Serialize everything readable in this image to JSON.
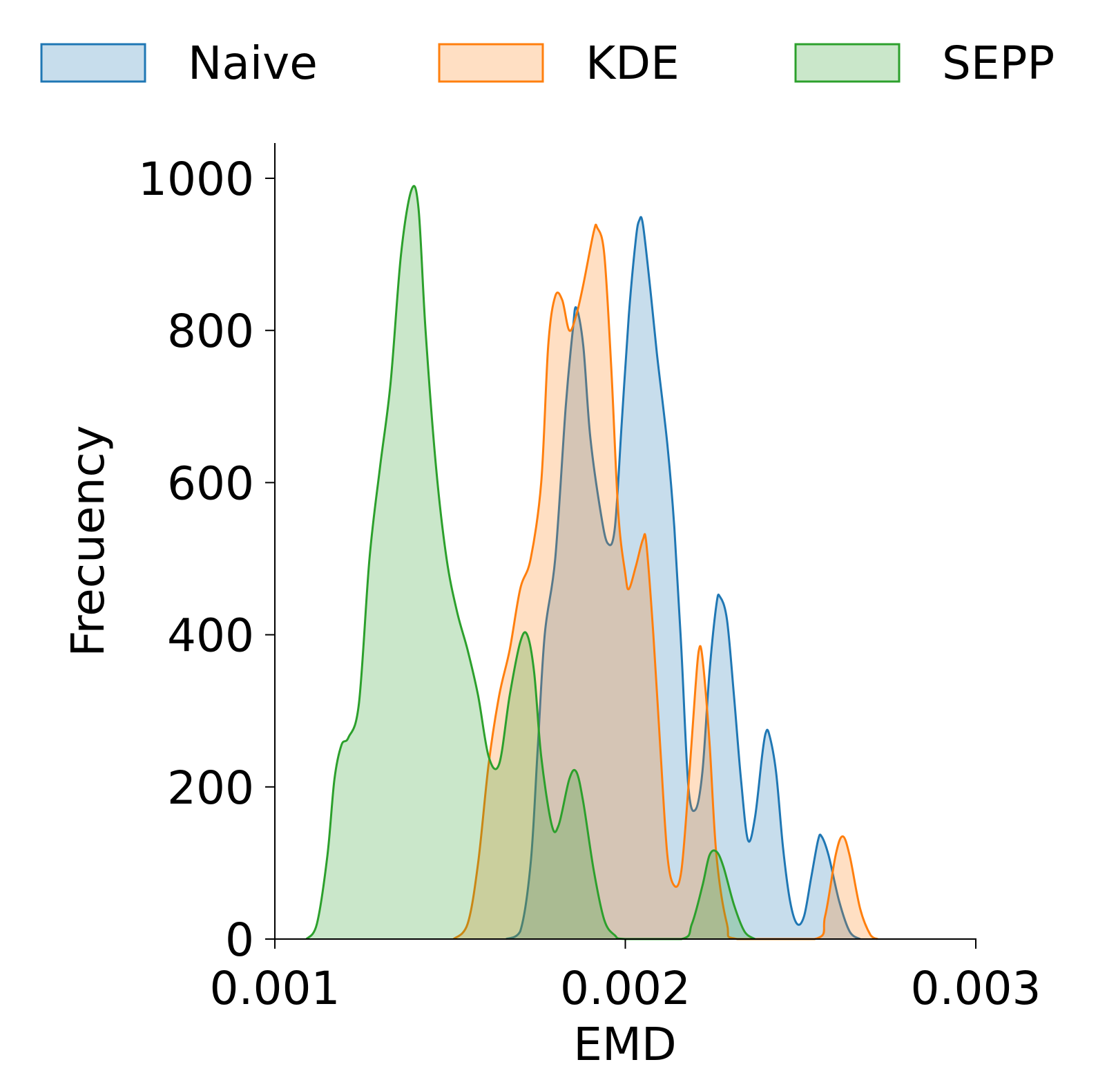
{
  "chart_data": {
    "type": "area",
    "title": "",
    "xlabel": "EMD",
    "ylabel": "Frecuency",
    "xlim": [
      0.001,
      0.003
    ],
    "ylim": [
      0,
      1040
    ],
    "x_ticks": [
      0.001,
      0.002,
      0.003
    ],
    "x_tick_labels": [
      "0.001",
      "0.002",
      "0.003"
    ],
    "y_ticks": [
      0,
      200,
      400,
      600,
      800,
      1000
    ],
    "y_tick_labels": [
      "0",
      "200",
      "400",
      "600",
      "800",
      "1000"
    ],
    "grid": false,
    "legend_position": "top",
    "series": [
      {
        "name": "Naive",
        "color": "#1f77b4",
        "points": [
          [
            0.00166,
            0
          ],
          [
            0.0017,
            10
          ],
          [
            0.00173,
            100
          ],
          [
            0.00175,
            250
          ],
          [
            0.00177,
            400
          ],
          [
            0.0018,
            500
          ],
          [
            0.00183,
            700
          ],
          [
            0.00185,
            800
          ],
          [
            0.00186,
            830
          ],
          [
            0.00188,
            780
          ],
          [
            0.0019,
            660
          ],
          [
            0.00193,
            560
          ],
          [
            0.00195,
            520
          ],
          [
            0.00197,
            540
          ],
          [
            0.00199,
            680
          ],
          [
            0.00201,
            820
          ],
          [
            0.00203,
            920
          ],
          [
            0.00204,
            945
          ],
          [
            0.00205,
            940
          ],
          [
            0.00207,
            860
          ],
          [
            0.00209,
            770
          ],
          [
            0.00212,
            650
          ],
          [
            0.00214,
            540
          ],
          [
            0.00216,
            380
          ],
          [
            0.00218,
            200
          ],
          [
            0.0022,
            170
          ],
          [
            0.00222,
            220
          ],
          [
            0.00224,
            350
          ],
          [
            0.00226,
            440
          ],
          [
            0.00227,
            450
          ],
          [
            0.00229,
            420
          ],
          [
            0.00231,
            320
          ],
          [
            0.00233,
            210
          ],
          [
            0.00235,
            130
          ],
          [
            0.00237,
            160
          ],
          [
            0.00239,
            240
          ],
          [
            0.0024,
            270
          ],
          [
            0.00241,
            270
          ],
          [
            0.00243,
            220
          ],
          [
            0.00245,
            120
          ],
          [
            0.00247,
            50
          ],
          [
            0.00249,
            20
          ],
          [
            0.00251,
            30
          ],
          [
            0.00253,
            80
          ],
          [
            0.00255,
            130
          ],
          [
            0.00256,
            135
          ],
          [
            0.00258,
            110
          ],
          [
            0.00261,
            50
          ],
          [
            0.00264,
            10
          ],
          [
            0.00267,
            0
          ]
        ]
      },
      {
        "name": "KDE",
        "color": "#ff7f0e",
        "points": [
          [
            0.00151,
            0
          ],
          [
            0.00155,
            20
          ],
          [
            0.00158,
            100
          ],
          [
            0.00161,
            230
          ],
          [
            0.00164,
            320
          ],
          [
            0.00167,
            380
          ],
          [
            0.0017,
            460
          ],
          [
            0.00173,
            500
          ],
          [
            0.00176,
            600
          ],
          [
            0.00178,
            780
          ],
          [
            0.0018,
            845
          ],
          [
            0.00182,
            840
          ],
          [
            0.00184,
            800
          ],
          [
            0.00186,
            820
          ],
          [
            0.00188,
            860
          ],
          [
            0.00191,
            930
          ],
          [
            0.00192,
            935
          ],
          [
            0.00194,
            900
          ],
          [
            0.00196,
            750
          ],
          [
            0.00198,
            560
          ],
          [
            0.002,
            480
          ],
          [
            0.00201,
            460
          ],
          [
            0.00203,
            490
          ],
          [
            0.00205,
            525
          ],
          [
            0.00206,
            520
          ],
          [
            0.00208,
            400
          ],
          [
            0.0021,
            250
          ],
          [
            0.00212,
            110
          ],
          [
            0.00214,
            70
          ],
          [
            0.00216,
            90
          ],
          [
            0.00218,
            200
          ],
          [
            0.0022,
            330
          ],
          [
            0.00221,
            380
          ],
          [
            0.00222,
            370
          ],
          [
            0.00224,
            260
          ],
          [
            0.00226,
            110
          ],
          [
            0.00229,
            20
          ],
          [
            0.00232,
            0
          ],
          [
            0.00254,
            0
          ],
          [
            0.00257,
            30
          ],
          [
            0.0026,
            110
          ],
          [
            0.00262,
            135
          ],
          [
            0.00264,
            110
          ],
          [
            0.00267,
            40
          ],
          [
            0.0027,
            5
          ],
          [
            0.00272,
            0
          ]
        ]
      },
      {
        "name": "SEPP",
        "color": "#2ca02c",
        "points": [
          [
            0.00109,
            0
          ],
          [
            0.00112,
            20
          ],
          [
            0.00115,
            110
          ],
          [
            0.00117,
            210
          ],
          [
            0.00119,
            255
          ],
          [
            0.00121,
            265
          ],
          [
            0.00124,
            310
          ],
          [
            0.00127,
            500
          ],
          [
            0.0013,
            620
          ],
          [
            0.00133,
            730
          ],
          [
            0.00136,
            900
          ],
          [
            0.00139,
            985
          ],
          [
            0.00141,
            960
          ],
          [
            0.00143,
            800
          ],
          [
            0.00146,
            620
          ],
          [
            0.00149,
            500
          ],
          [
            0.00152,
            430
          ],
          [
            0.00155,
            380
          ],
          [
            0.00158,
            320
          ],
          [
            0.00161,
            240
          ],
          [
            0.00164,
            230
          ],
          [
            0.00167,
            320
          ],
          [
            0.0017,
            390
          ],
          [
            0.00172,
            400
          ],
          [
            0.00174,
            350
          ],
          [
            0.00176,
            240
          ],
          [
            0.00179,
            150
          ],
          [
            0.00181,
            150
          ],
          [
            0.00184,
            210
          ],
          [
            0.00186,
            220
          ],
          [
            0.00188,
            180
          ],
          [
            0.00191,
            90
          ],
          [
            0.00194,
            25
          ],
          [
            0.00197,
            5
          ],
          [
            0.002,
            0
          ],
          [
            0.00216,
            0
          ],
          [
            0.00219,
            20
          ],
          [
            0.00222,
            70
          ],
          [
            0.00224,
            110
          ],
          [
            0.00226,
            115
          ],
          [
            0.00228,
            95
          ],
          [
            0.00231,
            45
          ],
          [
            0.00234,
            10
          ],
          [
            0.00237,
            0
          ]
        ]
      }
    ]
  }
}
